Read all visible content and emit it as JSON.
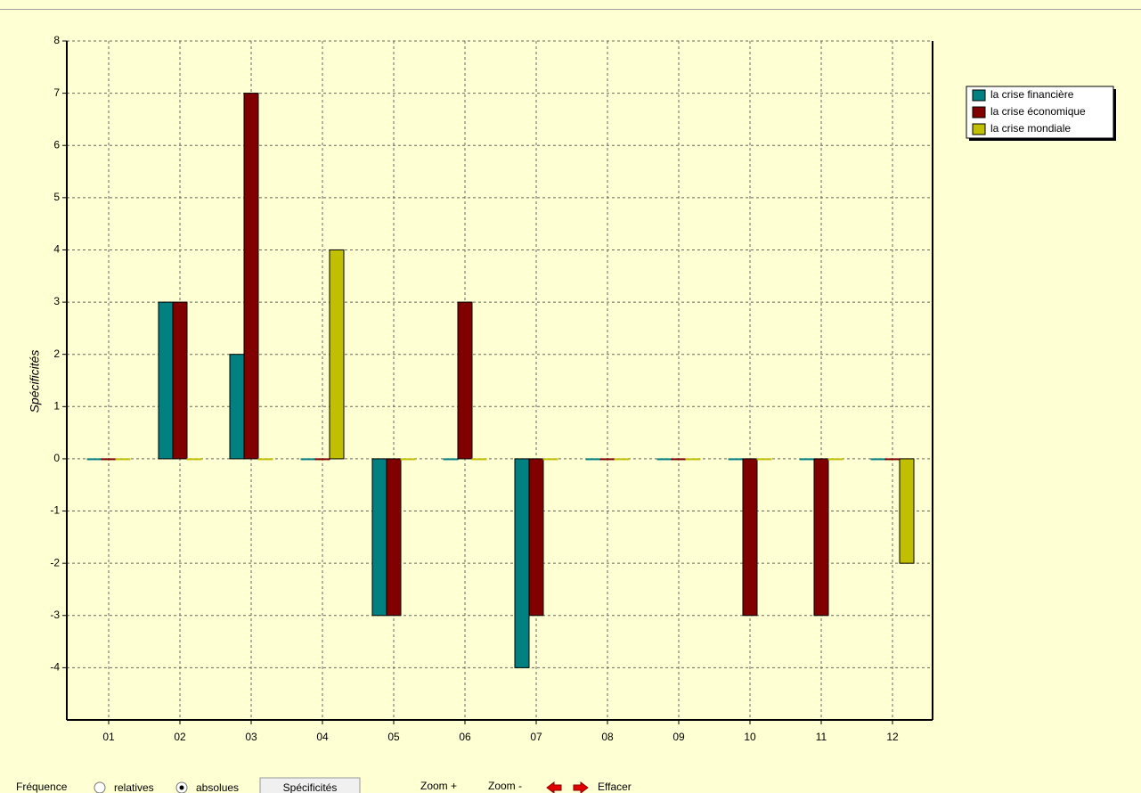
{
  "chart_data": {
    "type": "bar",
    "y_label": "Spécificités",
    "categories": [
      "01",
      "02",
      "03",
      "04",
      "05",
      "06",
      "07",
      "08",
      "09",
      "10",
      "11",
      "12"
    ],
    "series": [
      {
        "name": "la crise financière",
        "color": "#008080",
        "values": [
          0,
          3,
          2,
          0,
          -3,
          0,
          -4,
          0,
          0,
          0,
          0,
          0
        ]
      },
      {
        "name": "la crise économique",
        "color": "#800000",
        "values": [
          0,
          3,
          7,
          0,
          -3,
          3,
          -3,
          0,
          0,
          -3,
          -3,
          0
        ]
      },
      {
        "name": "la crise mondiale",
        "color": "#c0c000",
        "values": [
          0,
          0,
          0,
          4,
          0,
          0,
          0,
          0,
          0,
          0,
          0,
          -2
        ]
      }
    ],
    "ylim": [
      -5,
      8
    ],
    "yticks": [
      -4,
      -3,
      -2,
      -1,
      0,
      1,
      2,
      3,
      4,
      5,
      6,
      7,
      8
    ],
    "grid": true,
    "legend": "right"
  },
  "toolbar": {
    "frequency_label": "Fréquence",
    "option_relative": "relatives",
    "option_absolute": "absolues",
    "button": "Spécificités",
    "zoom_in": "Zoom +",
    "zoom_out": "Zoom -",
    "clear": "Effacer"
  }
}
